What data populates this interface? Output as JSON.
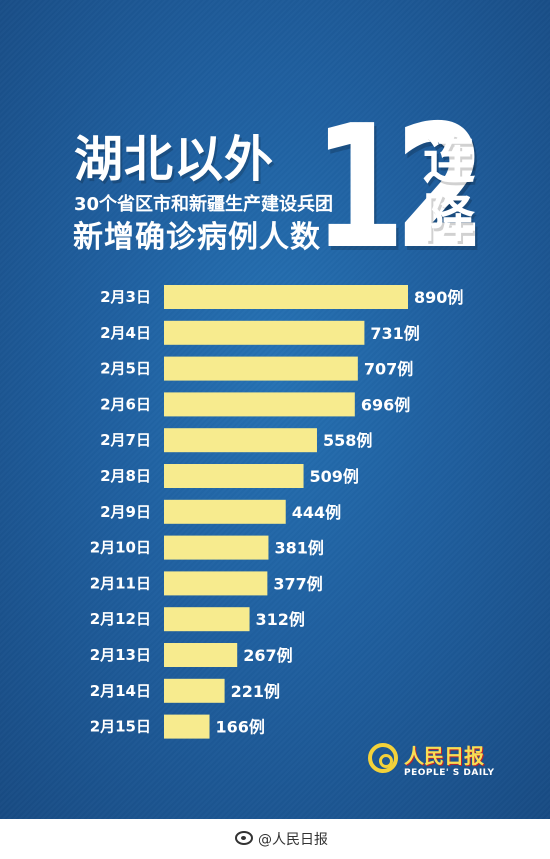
{
  "poster": {
    "title_main": "湖北以外",
    "title_sub1": "30个省区市和新疆生产建设兵团",
    "title_sub2": "新增确诊病例人数",
    "big_number": "12",
    "side_char1": "连",
    "side_char2": "降"
  },
  "logo": {
    "name_cn": "人民日报",
    "name_en": "PEOPLE' S DAILY"
  },
  "footer": {
    "handle": "@人民日报"
  },
  "colors": {
    "background": "#1f5f9f",
    "bar": "#f7eb8e",
    "text": "#ffffff",
    "logo_yellow": "#f3d23a"
  },
  "chart_data": {
    "type": "bar",
    "orientation": "horizontal",
    "categories": [
      "2月3日",
      "2月4日",
      "2月5日",
      "2月6日",
      "2月7日",
      "2月8日",
      "2月9日",
      "2月10日",
      "2月11日",
      "2月12日",
      "2月13日",
      "2月14日",
      "2月15日"
    ],
    "values": [
      890,
      731,
      707,
      696,
      558,
      509,
      444,
      381,
      377,
      312,
      267,
      221,
      166
    ],
    "value_labels": [
      "890例",
      "731例",
      "707例",
      "696例",
      "558例",
      "509例",
      "444例",
      "381例",
      "377例",
      "312例",
      "267例",
      "221例",
      "166例"
    ],
    "grid": false,
    "legend": "none"
  }
}
